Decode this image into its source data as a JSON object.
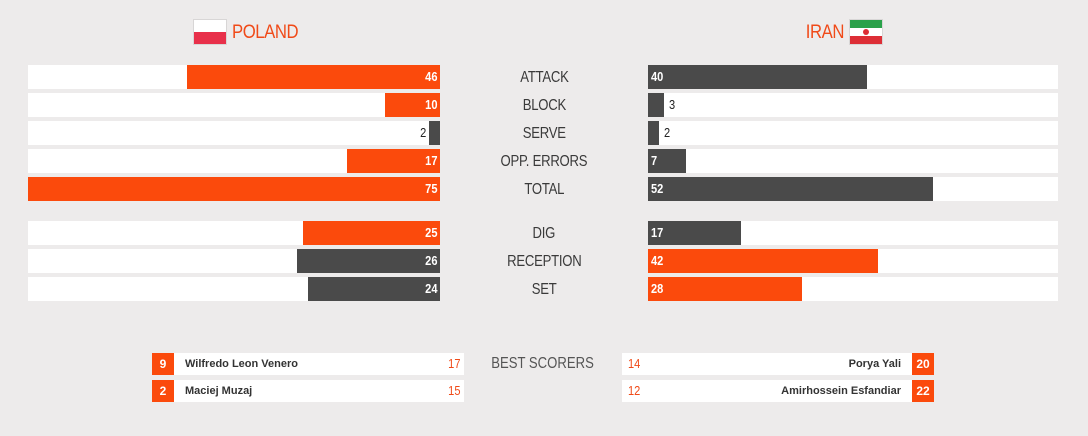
{
  "teams": {
    "left": {
      "name": "POLAND"
    },
    "right": {
      "name": "IRAN"
    }
  },
  "colors": {
    "accent": "#fb4a0c",
    "dark": "#4a4a4a",
    "panel": "#ffffff",
    "background": "#edebeb"
  },
  "scale_max": 75,
  "stats": [
    {
      "label": "ATTACK",
      "left": {
        "value": 46,
        "color": "orange"
      },
      "right": {
        "value": 40,
        "color": "gray"
      }
    },
    {
      "label": "BLOCK",
      "left": {
        "value": 10,
        "color": "orange"
      },
      "right": {
        "value": 3,
        "color": "gray"
      }
    },
    {
      "label": "SERVE",
      "left": {
        "value": 2,
        "color": "gray"
      },
      "right": {
        "value": 2,
        "color": "gray"
      }
    },
    {
      "label": "OPP. ERRORS",
      "left": {
        "value": 17,
        "color": "orange"
      },
      "right": {
        "value": 7,
        "color": "gray"
      }
    },
    {
      "label": "TOTAL",
      "left": {
        "value": 75,
        "color": "orange"
      },
      "right": {
        "value": 52,
        "color": "gray"
      }
    },
    {
      "label": "DIG",
      "left": {
        "value": 25,
        "color": "orange"
      },
      "right": {
        "value": 17,
        "color": "gray"
      }
    },
    {
      "label": "RECEPTION",
      "left": {
        "value": 26,
        "color": "gray"
      },
      "right": {
        "value": 42,
        "color": "orange"
      }
    },
    {
      "label": "SET",
      "left": {
        "value": 24,
        "color": "gray"
      },
      "right": {
        "value": 28,
        "color": "orange"
      }
    }
  ],
  "best_scorers": {
    "label": "BEST SCORERS",
    "left": [
      {
        "number": "9",
        "name": "Wilfredo Leon Venero",
        "points": "17"
      },
      {
        "number": "2",
        "name": "Maciej Muzaj",
        "points": "15"
      }
    ],
    "right": [
      {
        "number": "20",
        "name": "Porya Yali",
        "points": "14"
      },
      {
        "number": "22",
        "name": "Amirhossein Esfandiar",
        "points": "12"
      }
    ]
  }
}
